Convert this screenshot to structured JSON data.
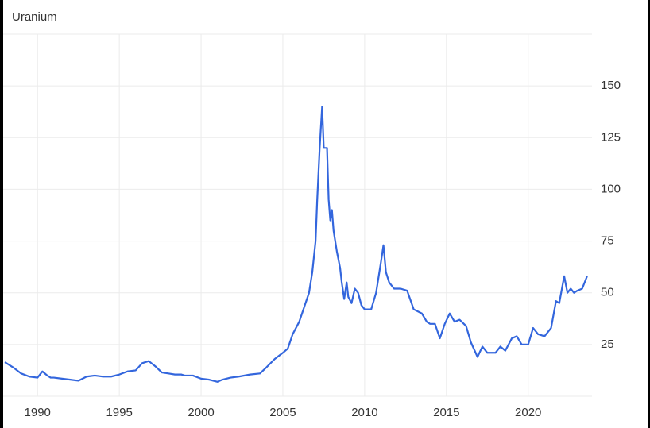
{
  "chart_data": {
    "type": "line",
    "title": "Uranium",
    "x": [
      1988.0,
      1988.5,
      1989.0,
      1989.5,
      1990.0,
      1990.3,
      1990.6,
      1990.8,
      1991.0,
      1991.5,
      1992.0,
      1992.5,
      1993.0,
      1993.5,
      1994.0,
      1994.5,
      1995.0,
      1995.5,
      1996.0,
      1996.4,
      1996.8,
      1997.2,
      1997.6,
      1998.0,
      1998.4,
      1998.8,
      1999.0,
      1999.5,
      2000.0,
      2000.5,
      2001.0,
      2001.3,
      2001.8,
      2002.3,
      2003.0,
      2003.6,
      2004.0,
      2004.5,
      2005.0,
      2005.3,
      2005.6,
      2006.0,
      2006.3,
      2006.6,
      2006.8,
      2007.0,
      2007.1,
      2007.25,
      2007.4,
      2007.5,
      2007.7,
      2007.8,
      2007.9,
      2008.0,
      2008.1,
      2008.3,
      2008.5,
      2008.6,
      2008.75,
      2008.9,
      2009.0,
      2009.2,
      2009.4,
      2009.6,
      2009.8,
      2010.0,
      2010.4,
      2010.7,
      2011.0,
      2011.15,
      2011.3,
      2011.5,
      2011.8,
      2012.2,
      2012.6,
      2013.0,
      2013.5,
      2013.8,
      2014.0,
      2014.3,
      2014.6,
      2014.9,
      2015.2,
      2015.5,
      2015.8,
      2016.2,
      2016.5,
      2016.9,
      2017.2,
      2017.5,
      2018.0,
      2018.3,
      2018.6,
      2019.0,
      2019.3,
      2019.6,
      2020.0,
      2020.3,
      2020.6,
      2021.0,
      2021.4,
      2021.7,
      2021.9,
      2022.2,
      2022.4,
      2022.6,
      2022.8,
      2023.0,
      2023.3,
      2023.6
    ],
    "series": [
      {
        "name": "Uranium",
        "color": "#3366dd",
        "values": [
          16.5,
          14,
          11,
          9.5,
          9,
          12,
          10,
          9,
          9,
          8.5,
          8,
          7.5,
          9.5,
          10,
          9.5,
          9.5,
          10.5,
          12,
          12.5,
          16,
          17,
          14.5,
          11.5,
          11,
          10.5,
          10.5,
          10,
          10,
          8.5,
          8,
          7,
          8,
          9,
          9.5,
          10.5,
          11,
          14,
          18,
          21,
          23,
          30,
          36,
          43,
          50,
          60,
          75,
          95,
          120,
          140,
          120,
          120,
          95,
          85,
          90,
          80,
          70,
          62,
          55,
          47,
          55,
          48,
          45,
          52,
          50,
          44,
          42,
          42,
          50,
          65,
          73,
          60,
          55,
          52,
          52,
          51,
          42,
          40,
          36,
          35,
          35,
          28,
          35,
          40,
          36,
          37,
          34,
          26,
          19,
          24,
          21,
          21,
          24,
          22,
          28,
          29,
          25,
          25,
          33,
          30,
          29,
          33,
          46,
          45,
          58,
          50,
          52,
          50,
          51,
          52,
          58
        ]
      }
    ],
    "xlim": [
      1987.9,
      2023.9
    ],
    "xticks": [
      1990,
      1995,
      2000,
      2005,
      2010,
      2015,
      2020
    ],
    "ylim": [
      0,
      175
    ],
    "yticks": [
      25,
      50,
      75,
      100,
      125,
      150
    ],
    "grid": true
  }
}
